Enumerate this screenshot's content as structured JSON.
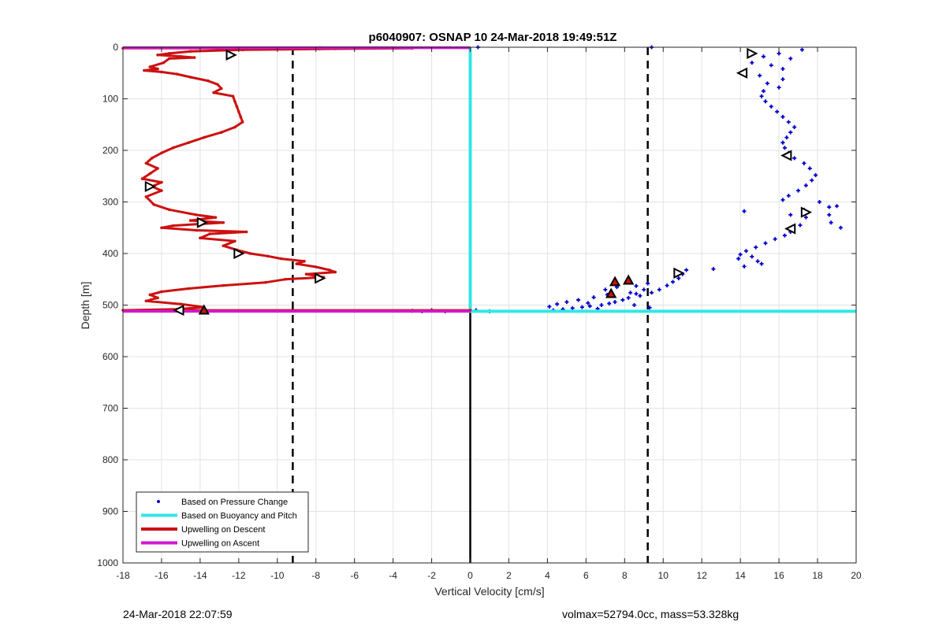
{
  "chart_data": {
    "type": "scatter",
    "title": "p6040907: OSNAP 10 24-Mar-2018 19:49:51Z",
    "xlabel": "Vertical Velocity [cm/s]",
    "ylabel": "Depth [m]",
    "xlim": [
      -18,
      20
    ],
    "ylim": [
      0,
      1000
    ],
    "y_reversed": true,
    "grid": true,
    "xticks": [
      -18,
      -16,
      -14,
      -12,
      -10,
      -8,
      -6,
      -4,
      -2,
      0,
      2,
      4,
      6,
      8,
      10,
      12,
      14,
      16,
      18,
      20
    ],
    "yticks": [
      0,
      100,
      200,
      300,
      400,
      500,
      600,
      700,
      800,
      900,
      1000
    ],
    "legend_position": "bottom-left",
    "legend": [
      {
        "label": "Based on Pressure Change",
        "style": "dot",
        "color": "#0000cc"
      },
      {
        "label": "Based on Buoyancy and Pitch",
        "style": "line",
        "color": "#33e6e6"
      },
      {
        "label": "Upwelling on Descent",
        "style": "line",
        "color": "#cc1111"
      },
      {
        "label": "Upwelling on Ascent",
        "style": "line",
        "color": "#d11ad1"
      }
    ],
    "reference_lines": [
      {
        "x": -9.2,
        "style": "dashed",
        "color": "#000000"
      },
      {
        "x": 9.2,
        "style": "dashed",
        "color": "#000000"
      },
      {
        "x": 0,
        "y_range": [
          510,
          1000
        ],
        "style": "solid",
        "color": "#000000"
      }
    ],
    "series": [
      {
        "name": "Based on Pressure Change",
        "kind": "scatter",
        "color": "#0000cc",
        "points": [
          [
            9.4,
            0
          ],
          [
            17.2,
            5
          ],
          [
            16.0,
            12
          ],
          [
            15.2,
            18
          ],
          [
            16.6,
            22
          ],
          [
            14.6,
            30
          ],
          [
            15.6,
            35
          ],
          [
            16.2,
            42
          ],
          [
            14.2,
            50
          ],
          [
            15.0,
            55
          ],
          [
            16.2,
            62
          ],
          [
            15.4,
            70
          ],
          [
            16.0,
            78
          ],
          [
            15.2,
            85
          ],
          [
            15.1,
            95
          ],
          [
            15.3,
            105
          ],
          [
            15.6,
            115
          ],
          [
            15.9,
            125
          ],
          [
            16.2,
            135
          ],
          [
            16.5,
            145
          ],
          [
            16.8,
            155
          ],
          [
            16.6,
            165
          ],
          [
            16.4,
            175
          ],
          [
            16.2,
            185
          ],
          [
            16.3,
            195
          ],
          [
            16.5,
            205
          ],
          [
            16.8,
            215
          ],
          [
            17.3,
            225
          ],
          [
            17.6,
            235
          ],
          [
            17.9,
            248
          ],
          [
            17.7,
            258
          ],
          [
            17.4,
            268
          ],
          [
            17.0,
            278
          ],
          [
            16.5,
            288
          ],
          [
            16.2,
            296
          ],
          [
            18.1,
            300
          ],
          [
            18.6,
            310
          ],
          [
            19.0,
            308
          ],
          [
            17.3,
            315
          ],
          [
            14.2,
            318
          ],
          [
            16.6,
            325
          ],
          [
            18.6,
            325
          ],
          [
            17.4,
            330
          ],
          [
            18.7,
            340
          ],
          [
            17.1,
            345
          ],
          [
            19.2,
            350
          ],
          [
            16.6,
            358
          ],
          [
            16.3,
            365
          ],
          [
            15.8,
            372
          ],
          [
            15.3,
            380
          ],
          [
            14.8,
            388
          ],
          [
            14.3,
            395
          ],
          [
            14.0,
            402
          ],
          [
            14.6,
            406
          ],
          [
            13.9,
            410
          ],
          [
            14.9,
            415
          ],
          [
            15.1,
            420
          ],
          [
            14.2,
            425
          ],
          [
            12.6,
            430
          ],
          [
            11.2,
            432
          ],
          [
            11.0,
            440
          ],
          [
            10.8,
            448
          ],
          [
            10.5,
            455
          ],
          [
            10.2,
            462
          ],
          [
            9.8,
            470
          ],
          [
            9.4,
            476
          ],
          [
            9.0,
            470
          ],
          [
            8.6,
            478
          ],
          [
            8.8,
            482
          ],
          [
            8.2,
            486
          ],
          [
            7.9,
            490
          ],
          [
            7.5,
            494
          ],
          [
            7.2,
            497
          ],
          [
            6.8,
            500
          ],
          [
            6.2,
            502
          ],
          [
            5.8,
            504
          ],
          [
            5.3,
            506
          ],
          [
            4.8,
            508
          ],
          [
            4.3,
            510
          ],
          [
            9.3,
            505
          ],
          [
            8.5,
            500
          ],
          [
            9.2,
            458
          ],
          [
            8.6,
            463
          ],
          [
            7.6,
            465
          ],
          [
            7.0,
            470
          ],
          [
            8.3,
            476
          ],
          [
            7.1,
            480
          ],
          [
            6.4,
            485
          ],
          [
            5.6,
            490
          ],
          [
            5.0,
            494
          ],
          [
            4.5,
            498
          ],
          [
            6.1,
            496
          ],
          [
            4.1,
            503
          ],
          [
            6.6,
            507
          ],
          [
            -1.3,
            512
          ],
          [
            -2.0,
            510
          ],
          [
            -2.5,
            512
          ],
          [
            -3.0,
            511
          ],
          [
            0.3,
            510
          ],
          [
            1.0,
            512
          ],
          [
            0.4,
            0
          ],
          [
            -7.8,
            2
          ]
        ]
      },
      {
        "name": "Based on Buoyancy and Pitch",
        "kind": "line",
        "color": "#33e6e6",
        "points": [
          [
            0,
            0
          ],
          [
            0,
            512
          ],
          [
            20,
            512
          ]
        ]
      },
      {
        "name": "Upwelling on Descent",
        "kind": "line",
        "color": "#cc1111",
        "points": [
          [
            -18,
            2
          ],
          [
            -3,
            2
          ],
          [
            -7,
            3
          ],
          [
            -11.8,
            5
          ],
          [
            -14.5,
            8
          ],
          [
            -15.6,
            12
          ],
          [
            -16.2,
            15
          ],
          [
            -15.0,
            18
          ],
          [
            -14.3,
            20
          ],
          [
            -15.6,
            22
          ],
          [
            -15.9,
            30
          ],
          [
            -16.6,
            38
          ],
          [
            -16.2,
            42
          ],
          [
            -16.9,
            45
          ],
          [
            -16.0,
            48
          ],
          [
            -15.2,
            52
          ],
          [
            -14.5,
            58
          ],
          [
            -13.6,
            65
          ],
          [
            -13.1,
            72
          ],
          [
            -12.9,
            80
          ],
          [
            -13.3,
            88
          ],
          [
            -12.3,
            95
          ],
          [
            -12.2,
            105
          ],
          [
            -12.1,
            115
          ],
          [
            -12.0,
            125
          ],
          [
            -11.9,
            135
          ],
          [
            -11.8,
            145
          ],
          [
            -12.2,
            155
          ],
          [
            -12.9,
            165
          ],
          [
            -13.8,
            175
          ],
          [
            -14.6,
            185
          ],
          [
            -15.4,
            195
          ],
          [
            -16.0,
            205
          ],
          [
            -16.5,
            215
          ],
          [
            -16.8,
            225
          ],
          [
            -16.2,
            235
          ],
          [
            -16.6,
            245
          ],
          [
            -17.0,
            255
          ],
          [
            -16.0,
            262
          ],
          [
            -16.5,
            270
          ],
          [
            -16.0,
            278
          ],
          [
            -16.8,
            290
          ],
          [
            -16.4,
            305
          ],
          [
            -15.6,
            315
          ],
          [
            -14.2,
            325
          ],
          [
            -13.2,
            330
          ],
          [
            -14.5,
            336
          ],
          [
            -12.8,
            340
          ],
          [
            -15.4,
            346
          ],
          [
            -16.0,
            350
          ],
          [
            -14.2,
            355
          ],
          [
            -11.6,
            358
          ],
          [
            -13.5,
            362
          ],
          [
            -14.0,
            370
          ],
          [
            -12.2,
            376
          ],
          [
            -12.8,
            385
          ],
          [
            -12.1,
            393
          ],
          [
            -11.4,
            400
          ],
          [
            -10.5,
            405
          ],
          [
            -9.8,
            410
          ],
          [
            -8.6,
            415
          ],
          [
            -9.0,
            420
          ],
          [
            -8.0,
            426
          ],
          [
            -7.3,
            432
          ],
          [
            -7.0,
            436
          ],
          [
            -8.5,
            440
          ],
          [
            -7.6,
            446
          ],
          [
            -9.6,
            450
          ],
          [
            -10.6,
            456
          ],
          [
            -12.8,
            462
          ],
          [
            -14.6,
            468
          ],
          [
            -16.0,
            474
          ],
          [
            -16.6,
            480
          ],
          [
            -16.2,
            486
          ],
          [
            -16.8,
            492
          ],
          [
            -15.0,
            498
          ],
          [
            -13.8,
            504
          ],
          [
            -15.2,
            508
          ],
          [
            -18,
            510
          ],
          [
            0,
            510
          ]
        ]
      },
      {
        "name": "Upwelling on Ascent",
        "kind": "line",
        "color": "#d11ad1",
        "points_top": [
          [
            -18,
            1
          ],
          [
            0,
            1
          ]
        ],
        "points_bottom": [
          [
            -18,
            512
          ],
          [
            0,
            512
          ]
        ]
      }
    ],
    "markers": [
      {
        "shape": "triangle-right",
        "color": "#000000",
        "points": [
          [
            -12.4,
            15
          ],
          [
            -16.6,
            270
          ],
          [
            -13.9,
            340
          ],
          [
            -12.0,
            400
          ],
          [
            -7.8,
            448
          ],
          [
            14.6,
            12
          ],
          [
            10.8,
            438
          ],
          [
            17.4,
            320
          ]
        ]
      },
      {
        "shape": "triangle-left",
        "color": "#000000",
        "points": [
          [
            -15.1,
            510
          ],
          [
            14.1,
            50
          ],
          [
            16.4,
            210
          ],
          [
            16.6,
            352
          ]
        ]
      },
      {
        "shape": "triangle-up",
        "color": "#000000",
        "fill": "#cc1111",
        "points": [
          [
            7.5,
            455
          ],
          [
            8.2,
            452
          ],
          [
            7.3,
            478
          ],
          [
            -13.8,
            510
          ]
        ]
      }
    ]
  },
  "footer": {
    "timestamp": "24-Mar-2018 22:07:59",
    "info": "volmax=52794.0cc, mass=53.328kg"
  }
}
